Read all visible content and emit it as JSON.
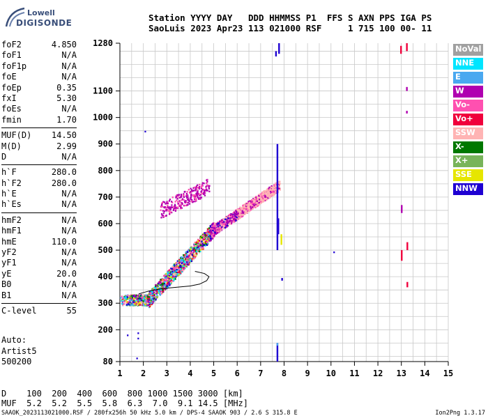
{
  "logo": {
    "line1": "Lowell",
    "line2": "DIGISONDE"
  },
  "header": {
    "row1": "Station YYYY DAY   DDD HHMMSS P1  FFS S AXN PPS IGA PS",
    "row2": "SaoLuis 2023 Apr23 113 021000 RSF     1 715 100 00- 11"
  },
  "params": [
    [
      {
        "k": "foF2",
        "v": "4.850"
      },
      {
        "k": "foF1",
        "v": "N/A"
      },
      {
        "k": "foF1p",
        "v": "N/A"
      },
      {
        "k": "foE",
        "v": "N/A"
      },
      {
        "k": "foEp",
        "v": "0.35"
      },
      {
        "k": "fxI",
        "v": "5.30"
      },
      {
        "k": "foEs",
        "v": "N/A"
      },
      {
        "k": "fmin",
        "v": "1.70"
      }
    ],
    [
      {
        "k": "MUF(D)",
        "v": "14.50"
      },
      {
        "k": "M(D)",
        "v": "2.99"
      },
      {
        "k": "D",
        "v": "N/A"
      }
    ],
    [
      {
        "k": "h`F",
        "v": "280.0"
      },
      {
        "k": "h`F2",
        "v": "280.0"
      },
      {
        "k": "h`E",
        "v": "N/A"
      },
      {
        "k": "h`Es",
        "v": "N/A"
      }
    ],
    [
      {
        "k": "hmF2",
        "v": "N/A"
      },
      {
        "k": "hmF1",
        "v": "N/A"
      },
      {
        "k": "hmE",
        "v": "110.0"
      },
      {
        "k": "yF2",
        "v": "N/A"
      },
      {
        "k": "yF1",
        "v": "N/A"
      },
      {
        "k": "yE",
        "v": "20.0"
      },
      {
        "k": "B0",
        "v": "N/A"
      },
      {
        "k": "B1",
        "v": "N/A"
      }
    ],
    [
      {
        "k": "C-level",
        "v": "55"
      }
    ]
  ],
  "auto": [
    "Auto:",
    "Artist5",
    "500200"
  ],
  "legend": [
    {
      "label": "NoVal",
      "color": "#a0a0a0"
    },
    {
      "label": "NNE",
      "color": "#00e5ff"
    },
    {
      "label": "E",
      "color": "#4aa8f0"
    },
    {
      "label": "W",
      "color": "#b000b0"
    },
    {
      "label": "Vo-",
      "color": "#ff50b0"
    },
    {
      "label": "Vo+",
      "color": "#f0003c"
    },
    {
      "label": "SSW",
      "color": "#ffb4b4"
    },
    {
      "label": "X-",
      "color": "#007800"
    },
    {
      "label": "X+",
      "color": "#78b45a"
    },
    {
      "label": "SSE",
      "color": "#e6e600"
    },
    {
      "label": "NNW",
      "color": "#1e00d2"
    }
  ],
  "muf_table": {
    "row1": "D    100  200  400  600  800 1000 1500 3000 [km]",
    "row2": "MUF  5.2  5.2  5.5  5.8  6.3  7.0  9.1 14.5 [MHz]"
  },
  "footer": "SAAOK_2023113021000.RSF / 280fx256h 50 kHz 5.0 km / DPS-4 SAAOK 903 / 2.6 S 315.8 E",
  "version": "Ion2Png 1.3.17",
  "chart_data": {
    "type": "scatter",
    "xlim": [
      1,
      15
    ],
    "ylim": [
      80,
      1280
    ],
    "xticks": [
      1,
      2,
      3,
      4,
      5,
      6,
      7,
      8,
      9,
      10,
      11,
      12,
      13,
      14,
      15
    ],
    "yticks": [
      80,
      200,
      300,
      400,
      500,
      600,
      700,
      800,
      900,
      1000,
      1100,
      1280
    ],
    "grid": true,
    "legend_position": "right",
    "trace": [
      {
        "x": 1.8,
        "y": 335
      },
      {
        "x": 2.2,
        "y": 345
      },
      {
        "x": 2.8,
        "y": 355
      },
      {
        "x": 3.4,
        "y": 360
      },
      {
        "x": 4.0,
        "y": 365
      },
      {
        "x": 4.4,
        "y": 372
      },
      {
        "x": 4.7,
        "y": 385
      },
      {
        "x": 4.8,
        "y": 400
      },
      {
        "x": 4.6,
        "y": 412
      },
      {
        "x": 4.2,
        "y": 420
      }
    ]
  }
}
